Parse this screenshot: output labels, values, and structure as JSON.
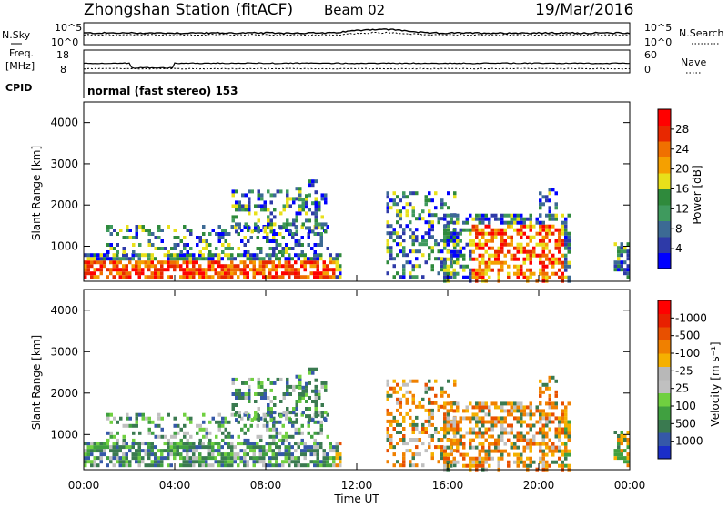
{
  "header": {
    "station": "Zhongshan Station (fitACF)",
    "beam": "Beam 02",
    "date": "19/Mar/2016"
  },
  "status_panel": {
    "nsky_label": "N.Sky",
    "nsky_ticks": [
      "10^5",
      "10^0"
    ],
    "nsearch_label": "N.Search",
    "nsearch_ticks": [
      "10^5",
      "10^0"
    ],
    "freq_label_line1": "Freq.",
    "freq_label_line2": "[MHz]",
    "freq_ticks": [
      "18",
      "8"
    ],
    "nave_label": "Nave",
    "nave_ticks": [
      "60",
      "0"
    ],
    "cpid_label": "CPID",
    "cpid_text": "normal (fast stereo) 153"
  },
  "chart_data": [
    {
      "type": "heatmap",
      "name": "power",
      "ylabel": "Slant Range [km]",
      "yticks": [
        "1000",
        "2000",
        "3000",
        "4000"
      ],
      "ylim": [
        150,
        4500
      ],
      "colorbar_label": "Power [dB]",
      "colorbar_ticks": [
        "4",
        "8",
        "12",
        "16",
        "20",
        "24",
        "28"
      ],
      "colorbar_colors": [
        "#0000ff",
        "#2e3aa8",
        "#3c6a94",
        "#3f9a5e",
        "#2f8a3c",
        "#e8e01a",
        "#f5a000",
        "#f07000",
        "#e82800",
        "#ff0000"
      ]
    },
    {
      "type": "heatmap",
      "name": "velocity",
      "ylabel": "Slant Range [km]",
      "yticks": [
        "1000",
        "2000",
        "3000",
        "4000"
      ],
      "ylim": [
        150,
        4500
      ],
      "colorbar_label": "Velocity [m s⁻¹]",
      "colorbar_ticks": [
        "1000",
        "500",
        "100",
        "25",
        "-25",
        "-100",
        "-500",
        "-1000"
      ],
      "colorbar_colors": [
        "#1a2ec8",
        "#3558a8",
        "#3a7a50",
        "#40a040",
        "#70d040",
        "#c0c0c0",
        "#b8b8b8",
        "#f5b000",
        "#f08000",
        "#e85000",
        "#e82000",
        "#ff0000"
      ]
    }
  ],
  "time_axis": {
    "ticks": [
      "00:00",
      "04:00",
      "08:00",
      "12:00",
      "16:00",
      "20:00",
      "00:00"
    ],
    "label": "Time UT"
  }
}
